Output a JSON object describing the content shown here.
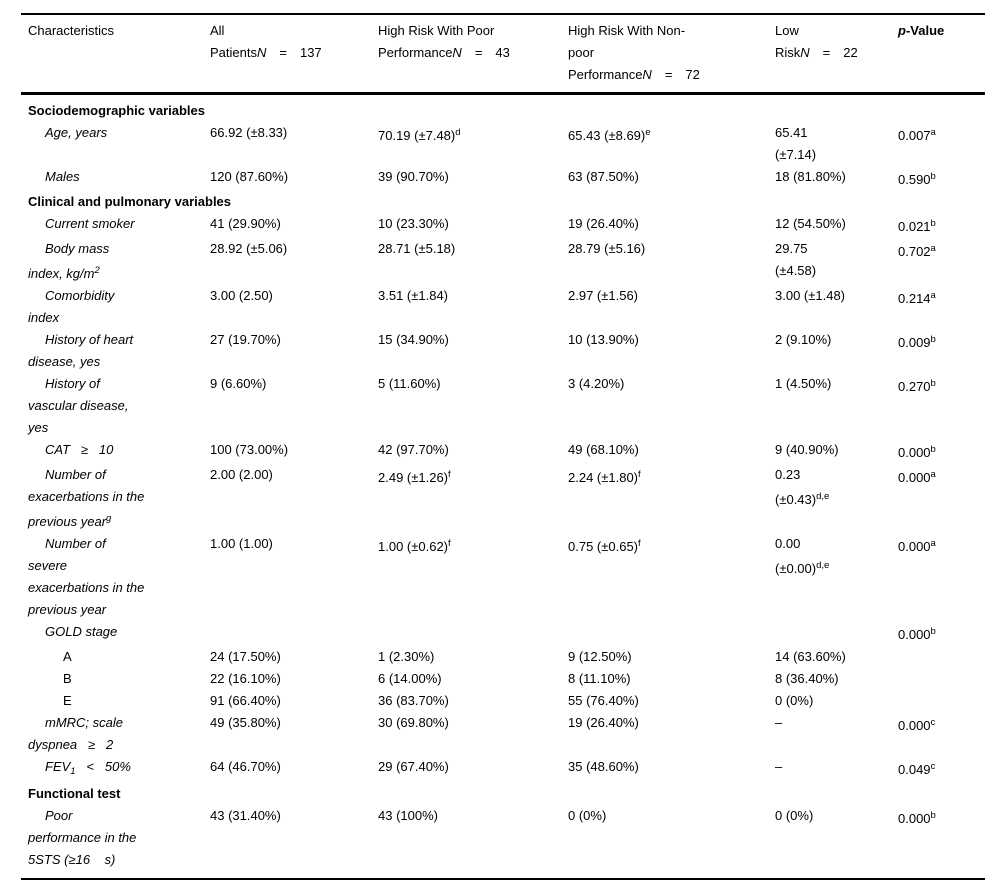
{
  "header": {
    "characteristics": "Characteristics",
    "groups": [
      {
        "lines": [
          "All"
        ],
        "tail": {
          "pre": "Patients",
          "n": "N",
          "eq": "=",
          "count": "137"
        }
      },
      {
        "lines": [
          "High Risk With Poor"
        ],
        "tail": {
          "pre": "Performance",
          "n": "N",
          "eq": "=",
          "count": "43"
        }
      },
      {
        "lines": [
          "High Risk With Non-",
          "poor"
        ],
        "tail": {
          "pre": "Performance",
          "n": "N",
          "eq": "=",
          "count": "72"
        }
      },
      {
        "lines": [
          "Low"
        ],
        "tail": {
          "pre": "Risk",
          "n": "N",
          "eq": "=",
          "count": "22"
        }
      }
    ],
    "pvalue": {
      "p": "p",
      "rest": "-Value"
    }
  },
  "rows": [
    {
      "kind": "section",
      "label": "Sociodemographic variables"
    },
    {
      "kind": "item",
      "label_lines": [
        {
          "t": "Age, years"
        }
      ],
      "cells": {
        "all": [
          {
            "t": "66.92 (±8.33)"
          }
        ],
        "poor": [
          {
            "t": "70.19 (±7.48)",
            "sup": "d"
          }
        ],
        "nonpoor": [
          {
            "t": "65.43 (±8.69)",
            "sup": "e"
          }
        ],
        "low": [
          {
            "t": "65.41"
          },
          {
            "t": "(±7.14)"
          }
        ],
        "p": [
          {
            "t": "0.007",
            "sup": "a"
          }
        ]
      }
    },
    {
      "kind": "item",
      "label_lines": [
        {
          "t": "Males"
        }
      ],
      "cells": {
        "all": [
          {
            "t": "120 (87.60%)"
          }
        ],
        "poor": [
          {
            "t": "39 (90.70%)"
          }
        ],
        "nonpoor": [
          {
            "t": "63 (87.50%)"
          }
        ],
        "low": [
          {
            "t": "18 (81.80%)"
          }
        ],
        "p": [
          {
            "t": "0.590",
            "sup": "b"
          }
        ]
      }
    },
    {
      "kind": "section",
      "label": "Clinical and pulmonary variables"
    },
    {
      "kind": "item",
      "label_lines": [
        {
          "t": "Current smoker"
        }
      ],
      "cells": {
        "all": [
          {
            "t": "41 (29.90%)"
          }
        ],
        "poor": [
          {
            "t": "10 (23.30%)"
          }
        ],
        "nonpoor": [
          {
            "t": "19 (26.40%)"
          }
        ],
        "low": [
          {
            "t": "12 (54.50%)"
          }
        ],
        "p": [
          {
            "t": "0.021",
            "sup": "b"
          }
        ]
      }
    },
    {
      "kind": "item",
      "label_lines": [
        {
          "t": "Body mass"
        },
        {
          "t": "index, kg/m",
          "sup": "2"
        }
      ],
      "cells": {
        "all": [
          {
            "t": "28.92 (±5.06)"
          }
        ],
        "poor": [
          {
            "t": "28.71 (±5.18)"
          }
        ],
        "nonpoor": [
          {
            "t": "28.79 (±5.16)"
          }
        ],
        "low": [
          {
            "t": "29.75"
          },
          {
            "t": "(±4.58)"
          }
        ],
        "p": [
          {
            "t": "0.702",
            "sup": "a"
          }
        ]
      }
    },
    {
      "kind": "item",
      "label_lines": [
        {
          "t": "Comorbidity"
        },
        {
          "t": "index"
        }
      ],
      "cells": {
        "all": [
          {
            "t": "3.00 (2.50)"
          }
        ],
        "poor": [
          {
            "t": "3.51 (±1.84)"
          }
        ],
        "nonpoor": [
          {
            "t": "2.97 (±1.56)"
          }
        ],
        "low": [
          {
            "t": "3.00 (±1.48)"
          }
        ],
        "p": [
          {
            "t": "0.214",
            "sup": "a"
          }
        ]
      }
    },
    {
      "kind": "item",
      "label_lines": [
        {
          "t": "History of heart"
        },
        {
          "t": "disease, yes"
        }
      ],
      "cells": {
        "all": [
          {
            "t": "27 (19.70%)"
          }
        ],
        "poor": [
          {
            "t": "15 (34.90%)"
          }
        ],
        "nonpoor": [
          {
            "t": "10 (13.90%)"
          }
        ],
        "low": [
          {
            "t": "2 (9.10%)"
          }
        ],
        "p": [
          {
            "t": "0.009",
            "sup": "b"
          }
        ]
      }
    },
    {
      "kind": "item",
      "label_lines": [
        {
          "t": "History of"
        },
        {
          "t": "vascular disease,"
        },
        {
          "t": "yes"
        }
      ],
      "cells": {
        "all": [
          {
            "t": "9 (6.60%)"
          }
        ],
        "poor": [
          {
            "t": "5 (11.60%)"
          }
        ],
        "nonpoor": [
          {
            "t": "3 (4.20%)"
          }
        ],
        "low": [
          {
            "t": "1 (4.50%)"
          }
        ],
        "p": [
          {
            "t": "0.270",
            "sup": "b"
          }
        ]
      }
    },
    {
      "kind": "item",
      "label_lines": [
        {
          "t": "CAT   ≥   10"
        }
      ],
      "cells": {
        "all": [
          {
            "t": "100 (73.00%)"
          }
        ],
        "poor": [
          {
            "t": "42 (97.70%)"
          }
        ],
        "nonpoor": [
          {
            "t": "49 (68.10%)"
          }
        ],
        "low": [
          {
            "t": "9 (40.90%)"
          }
        ],
        "p": [
          {
            "t": "0.000",
            "sup": "b"
          }
        ]
      }
    },
    {
      "kind": "item",
      "label_lines": [
        {
          "t": "Number of"
        },
        {
          "t": "exacerbations in the"
        },
        {
          "t": "previous year",
          "sup": "g"
        }
      ],
      "cells": {
        "all": [
          {
            "t": "2.00 (2.00)"
          }
        ],
        "poor": [
          {
            "t": "2.49 (±1.26)",
            "sup": "f"
          }
        ],
        "nonpoor": [
          {
            "t": "2.24 (±1.80)",
            "sup": "f"
          }
        ],
        "low": [
          {
            "t": "0.23"
          },
          {
            "t": "(±0.43)",
            "sup": "d,e"
          }
        ],
        "p": [
          {
            "t": "0.000",
            "sup": "a"
          }
        ]
      }
    },
    {
      "kind": "item",
      "label_lines": [
        {
          "t": "Number of"
        },
        {
          "t": "severe"
        },
        {
          "t": "exacerbations in the"
        },
        {
          "t": "previous year"
        }
      ],
      "cells": {
        "all": [
          {
            "t": "1.00 (1.00)"
          }
        ],
        "poor": [
          {
            "t": "1.00 (±0.62)",
            "sup": "f"
          }
        ],
        "nonpoor": [
          {
            "t": "0.75 (±0.65)",
            "sup": "f"
          }
        ],
        "low": [
          {
            "t": "0.00"
          },
          {
            "t": "(±0.00)",
            "sup": "d,e"
          }
        ],
        "p": [
          {
            "t": "0.000",
            "sup": "a"
          }
        ]
      }
    },
    {
      "kind": "item",
      "label_lines": [
        {
          "t": "GOLD stage"
        }
      ],
      "cells": {
        "all": null,
        "poor": null,
        "nonpoor": null,
        "low": null,
        "p": [
          {
            "t": "0.000",
            "sup": "b"
          }
        ]
      }
    },
    {
      "kind": "item",
      "style": "plain",
      "indent": 2,
      "label_lines": [
        {
          "t": "A"
        }
      ],
      "cells": {
        "all": [
          {
            "t": "24 (17.50%)"
          }
        ],
        "poor": [
          {
            "t": "1 (2.30%)"
          }
        ],
        "nonpoor": [
          {
            "t": "9 (12.50%)"
          }
        ],
        "low": [
          {
            "t": "14 (63.60%)"
          }
        ],
        "p": null
      }
    },
    {
      "kind": "item",
      "style": "plain",
      "indent": 2,
      "label_lines": [
        {
          "t": "B"
        }
      ],
      "cells": {
        "all": [
          {
            "t": "22 (16.10%)"
          }
        ],
        "poor": [
          {
            "t": "6 (14.00%)"
          }
        ],
        "nonpoor": [
          {
            "t": "8 (11.10%)"
          }
        ],
        "low": [
          {
            "t": "8 (36.40%)"
          }
        ],
        "p": null
      }
    },
    {
      "kind": "item",
      "style": "plain",
      "indent": 2,
      "label_lines": [
        {
          "t": "E"
        }
      ],
      "cells": {
        "all": [
          {
            "t": "91 (66.40%)"
          }
        ],
        "poor": [
          {
            "t": "36 (83.70%)"
          }
        ],
        "nonpoor": [
          {
            "t": "55 (76.40%)"
          }
        ],
        "low": [
          {
            "t": "0 (0%)"
          }
        ],
        "p": null
      }
    },
    {
      "kind": "item",
      "label_lines": [
        {
          "t": "mMRC; scale"
        },
        {
          "t": "dyspnea   ≥   2"
        }
      ],
      "cells": {
        "all": [
          {
            "t": "49 (35.80%)"
          }
        ],
        "poor": [
          {
            "t": "30 (69.80%)"
          }
        ],
        "nonpoor": [
          {
            "t": "19 (26.40%)"
          }
        ],
        "low": [
          {
            "t": "–"
          }
        ],
        "p": [
          {
            "t": "0.000",
            "sup": "c"
          }
        ]
      }
    },
    {
      "kind": "item",
      "label_lines": [
        {
          "t": "FEV",
          "sub": "1",
          "t2": "   <   50%"
        }
      ],
      "cells": {
        "all": [
          {
            "t": "64 (46.70%)"
          }
        ],
        "poor": [
          {
            "t": "29 (67.40%)"
          }
        ],
        "nonpoor": [
          {
            "t": "35 (48.60%)"
          }
        ],
        "low": [
          {
            "t": "–"
          }
        ],
        "p": [
          {
            "t": "0.049",
            "sup": "c"
          }
        ]
      }
    },
    {
      "kind": "section",
      "label": "Functional test"
    },
    {
      "kind": "item",
      "label_lines": [
        {
          "t": "Poor"
        },
        {
          "t": "performance in the"
        },
        {
          "t": "5STS (≥16    s)"
        }
      ],
      "cells": {
        "all": [
          {
            "t": "43 (31.40%)"
          }
        ],
        "poor": [
          {
            "t": "43 (100%)"
          }
        ],
        "nonpoor": [
          {
            "t": "0 (0%)"
          }
        ],
        "low": [
          {
            "t": "0 (0%)"
          }
        ],
        "p": [
          {
            "t": "0.000",
            "sup": "b"
          }
        ]
      }
    }
  ]
}
